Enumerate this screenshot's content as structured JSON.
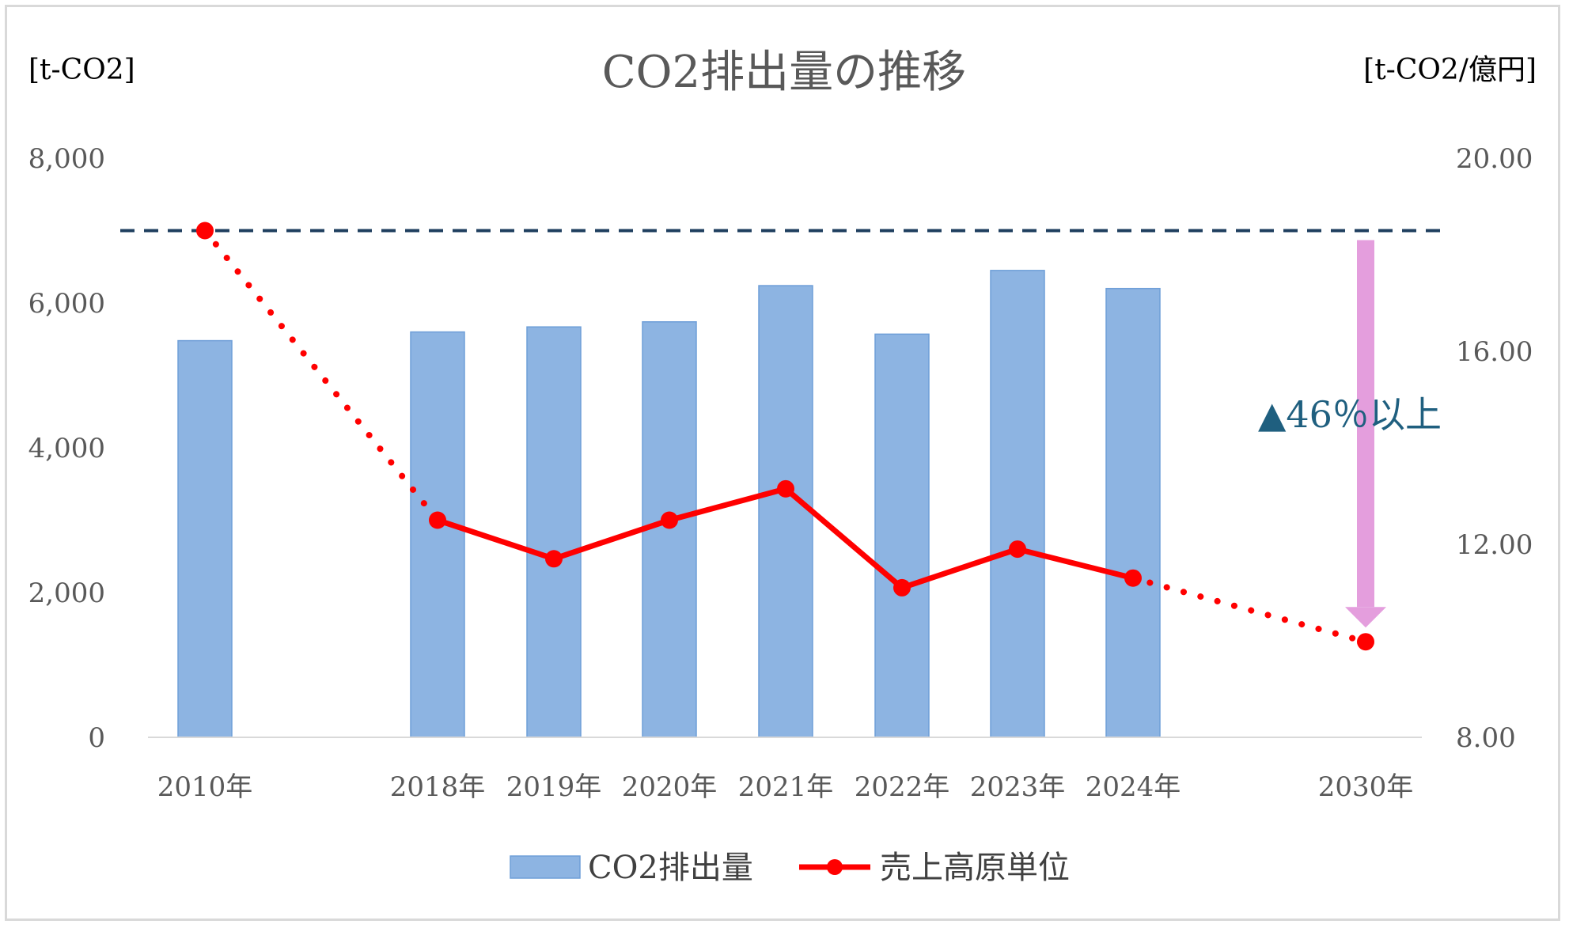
{
  "chart_data": {
    "type": "bar",
    "title": "CO2排出量の推移",
    "ylabel": "[t-CO2]",
    "y2label": "[t-CO2/億円]",
    "categories": [
      "2010年",
      "2018年",
      "2019年",
      "2020年",
      "2021年",
      "2022年",
      "2023年",
      "2024年",
      "2030年"
    ],
    "ylim": [
      0,
      8000
    ],
    "y2lim": [
      8,
      20
    ],
    "yticks": [
      "0",
      "2,000",
      "4,000",
      "6,000",
      "8,000"
    ],
    "y2ticks": [
      "8.00",
      "12.00",
      "16.00",
      "20.00"
    ],
    "series": [
      {
        "name": "CO2排出量",
        "type": "bar",
        "axis": "left",
        "color": "#8db4e2",
        "values": [
          5480,
          5600,
          5670,
          5740,
          6240,
          5570,
          6450,
          6200,
          null
        ]
      },
      {
        "name": "売上高原単位",
        "type": "line",
        "axis": "right",
        "color": "#ff0000",
        "values": [
          18.5,
          12.5,
          11.7,
          12.5,
          13.15,
          11.1,
          11.9,
          11.3,
          9.98
        ],
        "dotted_segments": [
          [
            0,
            1
          ],
          [
            7,
            8
          ]
        ]
      }
    ],
    "reference_line": {
      "value": 18.5,
      "axis": "right",
      "color": "#1f3f5f",
      "style": "dashed"
    },
    "annotation": {
      "text": "▲46％以上",
      "arrow_from": 18.5,
      "arrow_to": 9.98,
      "arrow_color": "#e49edd"
    },
    "legend": {
      "placement": "bottom"
    },
    "grid": false
  }
}
